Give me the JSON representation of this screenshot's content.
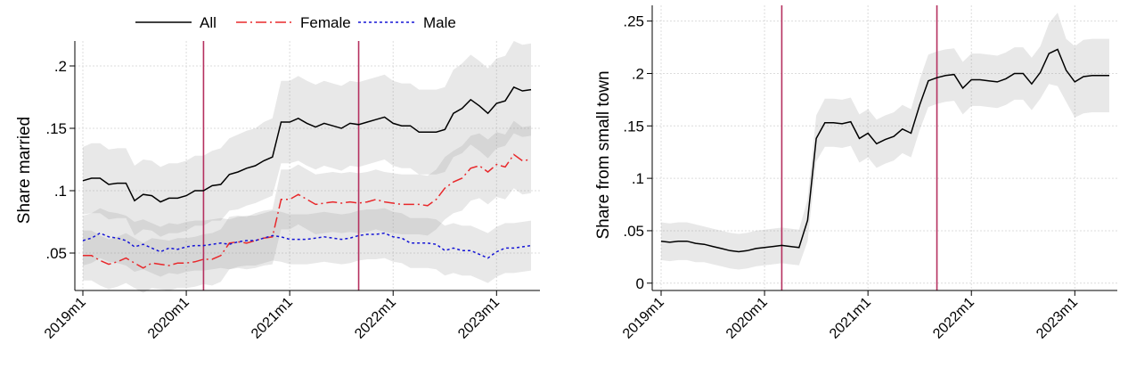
{
  "chart_data": [
    {
      "type": "line",
      "title": "",
      "xlabel": "",
      "ylabel": "Share married",
      "xlim": [
        "2019m1",
        "2023m1"
      ],
      "ylim": [
        0.02,
        0.22
      ],
      "yticks": [
        ".05",
        ".1",
        ".15",
        ".2"
      ],
      "ytick_values": [
        0.05,
        0.1,
        0.15,
        0.2
      ],
      "xticks": [
        "2019m1",
        "2020m1",
        "2021m1",
        "2022m1",
        "2023m1"
      ],
      "vlines": [
        "2020m3",
        "2021m9"
      ],
      "grid": true,
      "legend_position": "top",
      "series": [
        {
          "name": "All",
          "color": "#000000",
          "style": "solid",
          "values": [
            0.108,
            0.11,
            0.11,
            0.105,
            0.106,
            0.106,
            0.092,
            0.097,
            0.096,
            0.091,
            0.094,
            0.094,
            0.096,
            0.1,
            0.1,
            0.104,
            0.105,
            0.113,
            0.115,
            0.118,
            0.12,
            0.124,
            0.127,
            0.155,
            0.155,
            0.158,
            0.154,
            0.151,
            0.154,
            0.152,
            0.15,
            0.154,
            0.153,
            0.155,
            0.157,
            0.159,
            0.154,
            0.152,
            0.152,
            0.147,
            0.147,
            0.147,
            0.149,
            0.162,
            0.166,
            0.173,
            0.168,
            0.162,
            0.17,
            0.172,
            0.183,
            0.18,
            0.181
          ],
          "ci_upper": [
            0.135,
            0.138,
            0.138,
            0.133,
            0.134,
            0.134,
            0.12,
            0.125,
            0.124,
            0.119,
            0.122,
            0.122,
            0.124,
            0.128,
            0.128,
            0.132,
            0.134,
            0.142,
            0.145,
            0.148,
            0.15,
            0.155,
            0.158,
            0.188,
            0.188,
            0.192,
            0.188,
            0.185,
            0.188,
            0.186,
            0.184,
            0.188,
            0.187,
            0.189,
            0.191,
            0.193,
            0.188,
            0.186,
            0.186,
            0.181,
            0.181,
            0.181,
            0.183,
            0.197,
            0.202,
            0.209,
            0.204,
            0.198,
            0.206,
            0.208,
            0.22,
            0.217,
            0.218
          ],
          "ci_lower": [
            0.081,
            0.082,
            0.082,
            0.077,
            0.078,
            0.078,
            0.064,
            0.069,
            0.068,
            0.063,
            0.066,
            0.066,
            0.068,
            0.072,
            0.072,
            0.076,
            0.076,
            0.084,
            0.085,
            0.088,
            0.09,
            0.093,
            0.096,
            0.122,
            0.122,
            0.124,
            0.12,
            0.117,
            0.12,
            0.118,
            0.116,
            0.12,
            0.119,
            0.121,
            0.123,
            0.125,
            0.12,
            0.118,
            0.118,
            0.113,
            0.113,
            0.113,
            0.115,
            0.127,
            0.13,
            0.137,
            0.132,
            0.126,
            0.134,
            0.136,
            0.146,
            0.143,
            0.144
          ]
        },
        {
          "name": "Female",
          "color": "#e8282b",
          "style": "dashdot",
          "values": [
            0.048,
            0.048,
            0.044,
            0.041,
            0.043,
            0.046,
            0.042,
            0.038,
            0.042,
            0.041,
            0.04,
            0.042,
            0.042,
            0.043,
            0.045,
            0.045,
            0.048,
            0.058,
            0.059,
            0.058,
            0.06,
            0.062,
            0.063,
            0.093,
            0.093,
            0.097,
            0.093,
            0.089,
            0.09,
            0.091,
            0.09,
            0.091,
            0.09,
            0.091,
            0.093,
            0.091,
            0.09,
            0.089,
            0.089,
            0.089,
            0.088,
            0.093,
            0.102,
            0.107,
            0.11,
            0.118,
            0.12,
            0.115,
            0.121,
            0.119,
            0.129,
            0.124,
            0.125
          ],
          "ci_upper": [
            0.068,
            0.068,
            0.064,
            0.061,
            0.063,
            0.066,
            0.062,
            0.058,
            0.062,
            0.061,
            0.06,
            0.062,
            0.062,
            0.063,
            0.065,
            0.066,
            0.069,
            0.079,
            0.08,
            0.079,
            0.082,
            0.084,
            0.085,
            0.117,
            0.117,
            0.121,
            0.117,
            0.113,
            0.114,
            0.115,
            0.114,
            0.115,
            0.114,
            0.115,
            0.117,
            0.115,
            0.114,
            0.113,
            0.113,
            0.113,
            0.112,
            0.117,
            0.127,
            0.132,
            0.136,
            0.144,
            0.146,
            0.141,
            0.147,
            0.145,
            0.156,
            0.151,
            0.152
          ],
          "ci_lower": [
            0.028,
            0.028,
            0.024,
            0.021,
            0.023,
            0.026,
            0.022,
            0.018,
            0.022,
            0.021,
            0.02,
            0.022,
            0.022,
            0.023,
            0.025,
            0.024,
            0.027,
            0.037,
            0.038,
            0.037,
            0.038,
            0.04,
            0.041,
            0.069,
            0.069,
            0.073,
            0.069,
            0.065,
            0.066,
            0.067,
            0.066,
            0.067,
            0.066,
            0.067,
            0.069,
            0.067,
            0.066,
            0.065,
            0.065,
            0.065,
            0.064,
            0.069,
            0.077,
            0.082,
            0.084,
            0.092,
            0.094,
            0.089,
            0.095,
            0.093,
            0.102,
            0.097,
            0.098
          ]
        },
        {
          "name": "Male",
          "color": "#1515d6",
          "style": "dotted",
          "values": [
            0.06,
            0.062,
            0.066,
            0.063,
            0.062,
            0.06,
            0.055,
            0.057,
            0.054,
            0.051,
            0.054,
            0.053,
            0.055,
            0.056,
            0.056,
            0.057,
            0.058,
            0.057,
            0.059,
            0.06,
            0.06,
            0.062,
            0.064,
            0.063,
            0.061,
            0.061,
            0.061,
            0.062,
            0.063,
            0.062,
            0.061,
            0.062,
            0.064,
            0.065,
            0.065,
            0.066,
            0.063,
            0.062,
            0.058,
            0.058,
            0.058,
            0.057,
            0.052,
            0.054,
            0.052,
            0.052,
            0.049,
            0.046,
            0.051,
            0.054,
            0.054,
            0.055,
            0.056
          ],
          "ci_upper": [
            0.08,
            0.082,
            0.086,
            0.083,
            0.082,
            0.08,
            0.075,
            0.077,
            0.074,
            0.071,
            0.074,
            0.073,
            0.075,
            0.076,
            0.076,
            0.077,
            0.078,
            0.077,
            0.079,
            0.08,
            0.08,
            0.082,
            0.084,
            0.083,
            0.081,
            0.081,
            0.081,
            0.082,
            0.083,
            0.082,
            0.081,
            0.082,
            0.084,
            0.085,
            0.085,
            0.086,
            0.083,
            0.082,
            0.078,
            0.078,
            0.078,
            0.077,
            0.072,
            0.074,
            0.072,
            0.072,
            0.069,
            0.066,
            0.071,
            0.074,
            0.074,
            0.075,
            0.076
          ],
          "ci_lower": [
            0.04,
            0.042,
            0.046,
            0.043,
            0.042,
            0.04,
            0.035,
            0.037,
            0.034,
            0.031,
            0.034,
            0.033,
            0.035,
            0.036,
            0.036,
            0.037,
            0.038,
            0.037,
            0.039,
            0.04,
            0.04,
            0.042,
            0.044,
            0.043,
            0.041,
            0.041,
            0.041,
            0.042,
            0.043,
            0.042,
            0.041,
            0.042,
            0.044,
            0.045,
            0.045,
            0.046,
            0.043,
            0.042,
            0.038,
            0.038,
            0.038,
            0.037,
            0.032,
            0.034,
            0.032,
            0.032,
            0.029,
            0.026,
            0.031,
            0.034,
            0.034,
            0.035,
            0.036
          ]
        }
      ]
    },
    {
      "type": "line",
      "title": "",
      "xlabel": "",
      "ylabel": "Share from small town",
      "xlim": [
        "2019m1",
        "2023m1"
      ],
      "ylim": [
        -0.007,
        0.265
      ],
      "yticks": [
        "0",
        ".05",
        ".1",
        ".15",
        ".2",
        ".25"
      ],
      "ytick_values": [
        0,
        0.05,
        0.1,
        0.15,
        0.2,
        0.25
      ],
      "xticks": [
        "2019m1",
        "2020m1",
        "2021m1",
        "2022m1",
        "2023m1"
      ],
      "vlines": [
        "2020m3",
        "2021m9"
      ],
      "grid": true,
      "legend_position": "none",
      "series": [
        {
          "color": "#000000",
          "style": "solid",
          "values": [
            0.04,
            0.039,
            0.04,
            0.04,
            0.038,
            0.037,
            0.035,
            0.033,
            0.031,
            0.03,
            0.031,
            0.033,
            0.034,
            0.035,
            0.036,
            0.035,
            0.034,
            0.06,
            0.138,
            0.153,
            0.153,
            0.152,
            0.154,
            0.138,
            0.143,
            0.133,
            0.137,
            0.14,
            0.147,
            0.143,
            0.17,
            0.193,
            0.196,
            0.198,
            0.199,
            0.186,
            0.194,
            0.194,
            0.193,
            0.192,
            0.195,
            0.2,
            0.2,
            0.19,
            0.201,
            0.219,
            0.223,
            0.203,
            0.192,
            0.197,
            0.198,
            0.198,
            0.198
          ],
          "ci_upper": [
            0.058,
            0.057,
            0.058,
            0.058,
            0.056,
            0.054,
            0.052,
            0.05,
            0.048,
            0.047,
            0.048,
            0.05,
            0.051,
            0.052,
            0.053,
            0.052,
            0.051,
            0.08,
            0.16,
            0.176,
            0.176,
            0.175,
            0.177,
            0.161,
            0.166,
            0.156,
            0.16,
            0.163,
            0.17,
            0.166,
            0.194,
            0.218,
            0.221,
            0.223,
            0.224,
            0.211,
            0.219,
            0.219,
            0.218,
            0.217,
            0.22,
            0.225,
            0.225,
            0.215,
            0.226,
            0.248,
            0.258,
            0.233,
            0.226,
            0.232,
            0.233,
            0.233,
            0.233
          ],
          "ci_lower": [
            0.022,
            0.021,
            0.022,
            0.022,
            0.02,
            0.02,
            0.018,
            0.016,
            0.014,
            0.013,
            0.014,
            0.016,
            0.017,
            0.018,
            0.019,
            0.018,
            0.017,
            0.04,
            0.116,
            0.13,
            0.13,
            0.129,
            0.131,
            0.115,
            0.12,
            0.11,
            0.114,
            0.117,
            0.124,
            0.12,
            0.146,
            0.168,
            0.171,
            0.173,
            0.174,
            0.161,
            0.169,
            0.169,
            0.168,
            0.167,
            0.17,
            0.175,
            0.175,
            0.165,
            0.176,
            0.19,
            0.188,
            0.173,
            0.158,
            0.162,
            0.163,
            0.163,
            0.163
          ]
        }
      ]
    }
  ]
}
